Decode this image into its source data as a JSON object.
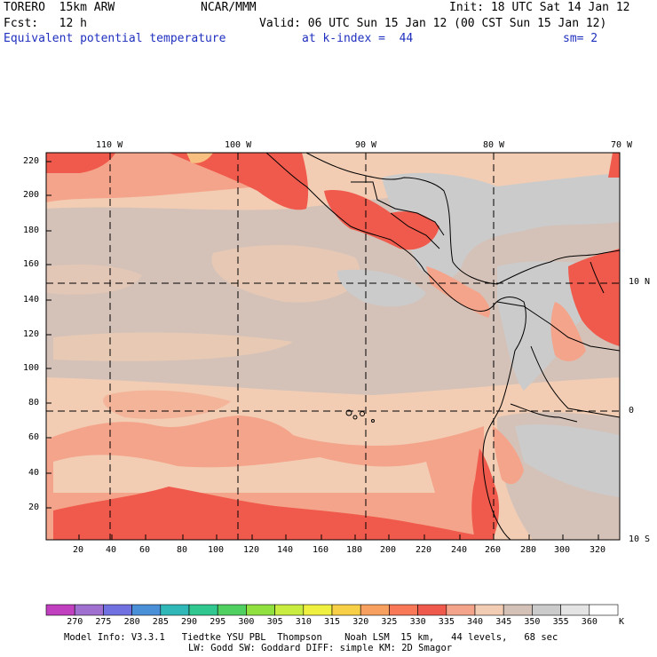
{
  "header": {
    "model": "TORERO  15km ARW",
    "org": "NCAR/MMM",
    "init": "Init: 18 UTC Sat 14 Jan 12",
    "fcst": "Fcst:   12 h",
    "valid": "Valid: 06 UTC Sun 15 Jan 12 (00 CST Sun 15 Jan 12)",
    "field": "Equivalent potential temperature",
    "level": "at k-index =  44",
    "smooth": "sm= 2"
  },
  "axes": {
    "top_lon": [
      "110 W",
      "100 W",
      "90 W",
      "80 W",
      "70 W"
    ],
    "right_lat": [
      "10 N",
      "0",
      "10 S"
    ],
    "left_y": [
      "220",
      "200",
      "180",
      "160",
      "140",
      "120",
      "100",
      "80",
      "60",
      "40",
      "20"
    ],
    "bottom_x": [
      "20",
      "40",
      "60",
      "80",
      "100",
      "120",
      "140",
      "160",
      "180",
      "200",
      "220",
      "240",
      "260",
      "280",
      "300",
      "320"
    ]
  },
  "colorbar": {
    "labels": [
      "270",
      "275",
      "280",
      "285",
      "290",
      "295",
      "300",
      "305",
      "310",
      "315",
      "320",
      "325",
      "330",
      "335",
      "340",
      "345",
      "350",
      "355",
      "360"
    ],
    "units": "K",
    "colors": [
      "#c040c0",
      "#a070d0",
      "#7070e0",
      "#4a90d8",
      "#30b8b8",
      "#30c890",
      "#50d060",
      "#90e040",
      "#c8ec40",
      "#f0f040",
      "#f8d048",
      "#f8a060",
      "#f87858",
      "#f05a4c",
      "#f4a48a",
      "#f2cdb4",
      "#d4c2b8",
      "#cbcbcb",
      "#e4e4e4",
      "#ffffff"
    ]
  },
  "footer": {
    "line1": "Model Info: V3.3.1   Tiedtke YSU PBL  Thompson    Noah LSM  15 km,   44 levels,   68 sec",
    "line2": "LW: Godd SW: Goddard DIFF: simple KM: 2D Smagor"
  },
  "map_colors": {
    "peach": "#f2cdb4",
    "taupe": "#d4c2b8",
    "gray": "#cbcbcb",
    "salmon": "#f4a48a",
    "red": "#f05a4c",
    "orange": "#f8c080"
  }
}
